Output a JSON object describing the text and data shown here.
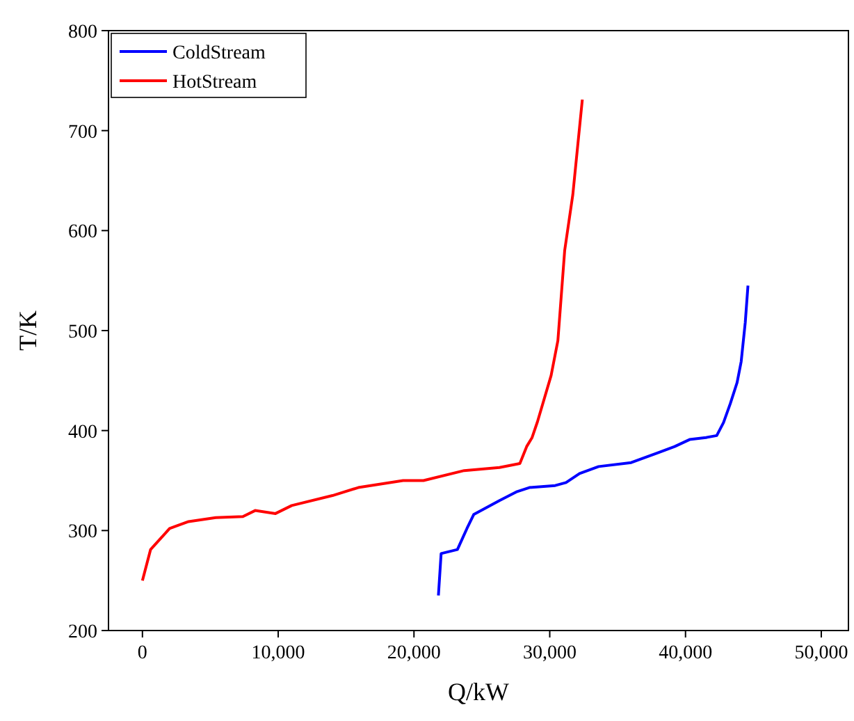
{
  "chart_data": {
    "type": "line",
    "xlabel": "Q/kW",
    "ylabel": "T/K",
    "xlim": [
      -2500,
      52000
    ],
    "ylim": [
      200,
      800
    ],
    "xticks": [
      {
        "value": 0,
        "label": "0"
      },
      {
        "value": 10000,
        "label": "10,000"
      },
      {
        "value": 20000,
        "label": "20,000"
      },
      {
        "value": 30000,
        "label": "30,000"
      },
      {
        "value": 40000,
        "label": "40,000"
      },
      {
        "value": 50000,
        "label": "50,000"
      }
    ],
    "yticks": [
      200,
      300,
      400,
      500,
      600,
      700,
      800
    ],
    "legend": "top left",
    "grid": false,
    "marker": "none",
    "line_style": "solid",
    "series": [
      {
        "name": "ColdStream",
        "color": "#0000ff",
        "x": [
          21800,
          22000,
          23200,
          23900,
          24400,
          26300,
          27600,
          28500,
          30400,
          31200,
          32200,
          33600,
          36000,
          38000,
          39200,
          40300,
          41500,
          42300,
          42800,
          43300,
          43800,
          44100,
          44400,
          44600
        ],
        "values": [
          235,
          277,
          281,
          302,
          316,
          330,
          339,
          343,
          345,
          348,
          357,
          364,
          368,
          378,
          384,
          391,
          393,
          395,
          408,
          427,
          448,
          469,
          508,
          545
        ]
      },
      {
        "name": "HotStream",
        "color": "#ff0000",
        "x": [
          0,
          600,
          2000,
          3400,
          5400,
          7400,
          8300,
          9800,
          11000,
          14000,
          15900,
          19200,
          20700,
          23700,
          26300,
          27800,
          28300,
          28700,
          29100,
          30100,
          30600,
          31100,
          31700,
          32400
        ],
        "values": [
          250,
          281,
          302,
          309,
          313,
          314,
          320,
          317,
          325,
          335,
          343,
          350,
          350,
          360,
          363,
          367,
          384,
          393,
          409,
          455,
          490,
          580,
          636,
          731
        ]
      }
    ]
  }
}
